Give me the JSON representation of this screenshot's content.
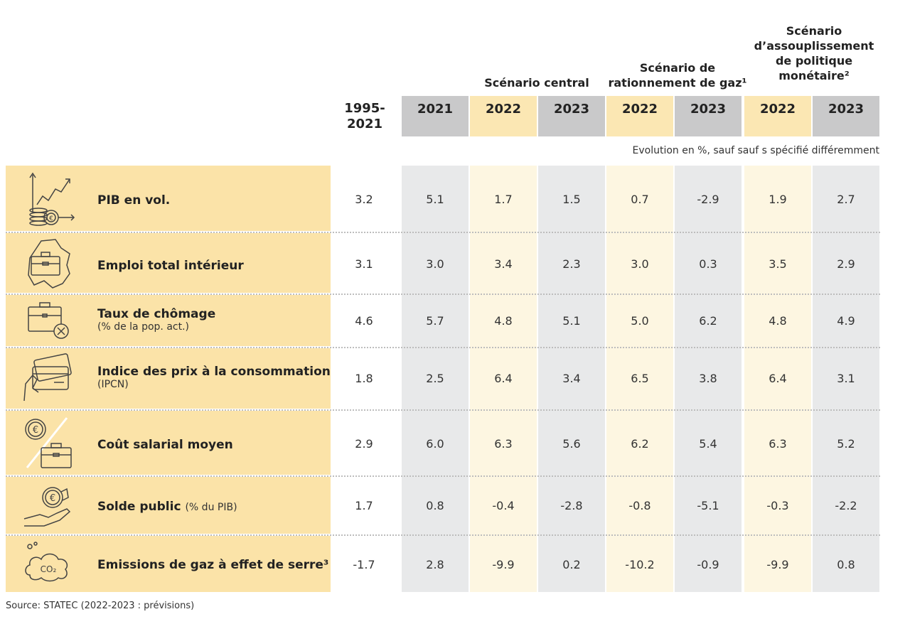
{
  "scenarios": {
    "central": "Scénario central",
    "gas_line1": "Scénario de",
    "gas_line2": "rationnement de gaz¹",
    "mon_line1": "Scénario",
    "mon_line2": "d’assouplissement",
    "mon_line3": "de politique",
    "mon_line4": "monétaire²"
  },
  "columns": [
    "1995-\n2021",
    "2021",
    "2022",
    "2023",
    "2022",
    "2023",
    "2022",
    "2023"
  ],
  "column_1995_line1": "1995-",
  "column_1995_line2": "2021",
  "unit_note": "Evolution en %, sauf sauf s spécifié différemment",
  "rows": [
    {
      "label": "PIB en vol.",
      "sub": "",
      "icon": "growth-chart-coins-icon",
      "values": [
        "3.2",
        "5.1",
        "1.7",
        "1.5",
        "0.7",
        "-2.9",
        "1.9",
        "2.7"
      ]
    },
    {
      "label": "Emploi total intérieur",
      "sub": "",
      "icon": "briefcase-map-icon",
      "values": [
        "3.1",
        "3.0",
        "3.4",
        "2.3",
        "3.0",
        "0.3",
        "3.5",
        "2.9"
      ]
    },
    {
      "label": "Taux de chômage",
      "sub": "(% de la pop. act.)",
      "icon": "briefcase-cross-icon",
      "values": [
        "4.6",
        "5.7",
        "4.8",
        "5.1",
        "5.0",
        "6.2",
        "4.8",
        "4.9"
      ]
    },
    {
      "label": "Indice des prix à la consommation",
      "sub": "(IPCN)",
      "icon": "hand-cards-icon",
      "values": [
        "1.8",
        "2.5",
        "6.4",
        "3.4",
        "6.5",
        "3.8",
        "6.4",
        "3.1"
      ]
    },
    {
      "label": "Coût salarial moyen",
      "sub": "",
      "icon": "euro-briefcase-icon",
      "values": [
        "2.9",
        "6.0",
        "6.3",
        "5.6",
        "6.2",
        "5.4",
        "6.3",
        "5.2"
      ]
    },
    {
      "label": "Solde public",
      "sub": "(% du PIB)",
      "icon": "hand-euro-coin-icon",
      "values": [
        "1.7",
        "0.8",
        "-0.4",
        "-2.8",
        "-0.8",
        "-5.1",
        "-0.3",
        "-2.2"
      ]
    },
    {
      "label": "Emissions de gaz à effet de serre³",
      "sub": "",
      "icon": "co2-cloud-icon",
      "values": [
        "-1.7",
        "2.8",
        "-9.9",
        "0.2",
        "-10.2",
        "-0.9",
        "-9.9",
        "0.8"
      ]
    }
  ],
  "source": "Source: STATEC (2022-2023 : prévisions)",
  "colors": {
    "label_panel": "#fbe3a8",
    "grey_header": "#c9c9ca",
    "yellow_header": "#fbe7b3"
  }
}
